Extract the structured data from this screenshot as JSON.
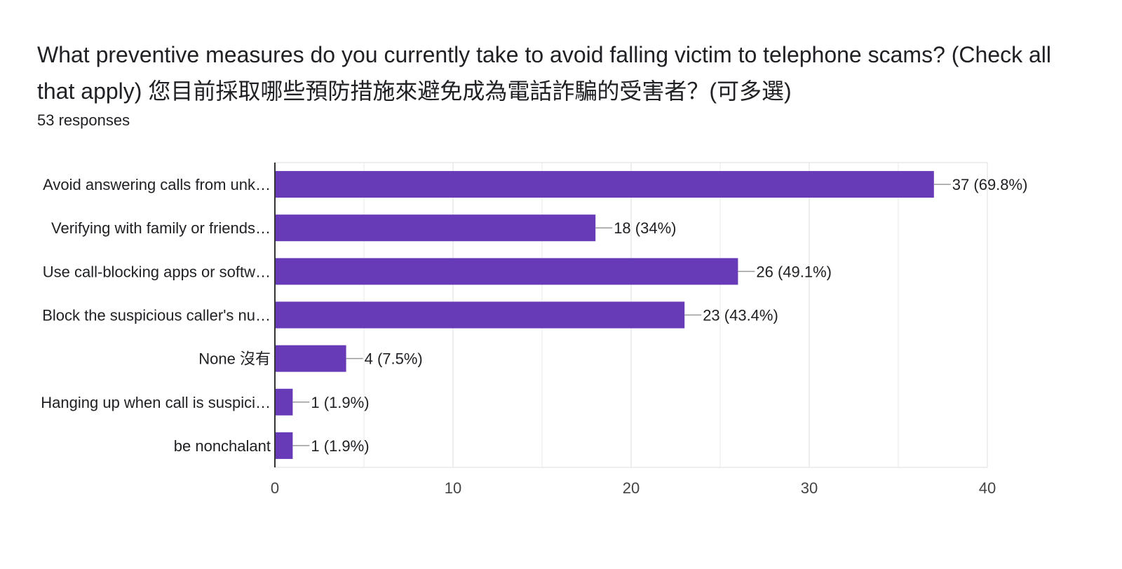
{
  "header": {
    "title": "What preventive measures do you currently take to avoid falling victim to telephone scams? (Check all that apply) 您目前採取哪些預防措施來避免成為電話詐騙的受害者？(可多選)",
    "responses": "53 responses"
  },
  "colors": {
    "bar": "#673ab7",
    "grid": "#e8e8e8",
    "axis": "#333333",
    "leader": "#999999"
  },
  "chart_data": {
    "type": "bar",
    "orientation": "horizontal",
    "categories": [
      "Avoid answering calls from unk…",
      "Verifying with family or friends…",
      "Use call-blocking apps or softw…",
      "Block the suspicious caller's nu…",
      "None 沒有",
      "Hanging up when call is suspici…",
      "be nonchalant"
    ],
    "values": [
      37,
      18,
      26,
      23,
      4,
      1,
      1
    ],
    "value_labels": [
      "37 (69.8%)",
      "18 (34%)",
      "26 (49.1%)",
      "23 (43.4%)",
      "4 (7.5%)",
      "1 (1.9%)",
      "1 (1.9%)"
    ],
    "xlim": [
      0,
      40
    ],
    "xticks": [
      0,
      10,
      20,
      30,
      40
    ],
    "xtick_labels": [
      "0",
      "10",
      "20",
      "30",
      "40"
    ],
    "grid": true
  }
}
